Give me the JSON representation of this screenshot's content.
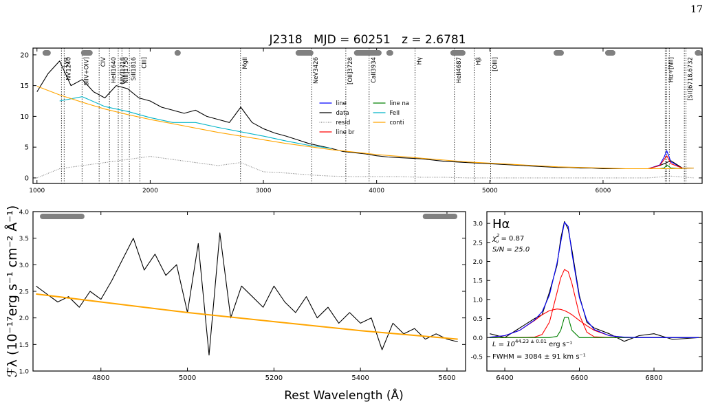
{
  "page_number": "17",
  "ylabel": "ℱλ (10⁻¹⁷erg s⁻¹ cm⁻² Å⁻¹)",
  "xlabel": "Rest Wavelength (Å)",
  "chart_data": [
    {
      "type": "line",
      "title": "J2318   MJD = 60251   z = 2.6781",
      "xlim": [
        965,
        6875
      ],
      "ylim": [
        -0.9,
        21.1
      ],
      "xticks": [
        1000,
        2000,
        3000,
        4000,
        5000,
        6000
      ],
      "yticks": [
        0,
        5,
        10,
        15,
        20
      ],
      "legend": "center",
      "legend_columns": 2,
      "windows": [
        [
          1049,
          1122
        ],
        [
          1389,
          1492
        ],
        [
          2215,
          2270
        ],
        [
          3284,
          3442
        ],
        [
          3800,
          4044
        ],
        [
          4086,
          4147
        ],
        [
          4651,
          4785
        ],
        [
          5563,
          5654
        ],
        [
          6018,
          6109
        ],
        [
          6810,
          6870
        ]
      ],
      "line_marks": {
        "x": [
          1216,
          1240,
          1398,
          1549,
          1640,
          1718,
          1750,
          1816,
          1909,
          2798,
          3426,
          3728,
          3934,
          4340,
          4687,
          4861,
          5007,
          6549,
          6563,
          6585,
          6718,
          6732
        ],
        "labels": [
          "Lyα",
          "NV1240",
          "SiIV+OIV]",
          "CIV",
          "HeII1640",
          "NIV]1718",
          "NIII]1750",
          "SiII1816",
          "CIII]",
          "MgII",
          "NeV3426",
          "[OII]3728",
          "CaII3934",
          "Hγ",
          "HeII4687",
          "Hβ",
          "[OIII]",
          null,
          "Hα+[NII]",
          null,
          null,
          "[SII]6718,6732"
        ]
      },
      "series": [
        {
          "name": "line",
          "color": "#0000ff",
          "x": [
            6400,
            6500,
            6540,
            6563,
            6600,
            6700
          ],
          "values": [
            1.5,
            2.1,
            3.4,
            4.4,
            2.6,
            1.6
          ]
        },
        {
          "name": "data",
          "color": "#000000",
          "x": [
            1000,
            1100,
            1200,
            1300,
            1400,
            1500,
            1600,
            1700,
            1800,
            1900,
            2000,
            2100,
            2200,
            2300,
            2400,
            2500,
            2600,
            2700,
            2800,
            2900,
            3000,
            3100,
            3200,
            3300,
            3400,
            3500,
            3600,
            3700,
            3800,
            3900,
            4000,
            4100,
            4200,
            4300,
            4400,
            4500,
            4600,
            4700,
            4800,
            4900,
            5000,
            5100,
            5200,
            5300,
            5400,
            5500,
            5600,
            5700,
            5800,
            5900,
            6000,
            6100,
            6200,
            6300,
            6400,
            6500,
            6600,
            6700,
            6800
          ],
          "values": [
            14,
            17,
            19,
            15,
            16,
            14,
            13,
            15,
            14.5,
            13,
            12.5,
            11.5,
            11,
            10.5,
            11,
            10,
            9.5,
            9,
            11.5,
            9,
            8,
            7.3,
            6.8,
            6.2,
            5.6,
            5.2,
            4.8,
            4.3,
            4.1,
            3.9,
            3.6,
            3.4,
            3.3,
            3.2,
            3.1,
            2.9,
            2.7,
            2.6,
            2.5,
            2.4,
            2.3,
            2.2,
            2.1,
            2.0,
            1.9,
            1.8,
            1.7,
            1.7,
            1.6,
            1.6,
            1.5,
            1.5,
            1.5,
            1.5,
            1.5,
            2.0,
            2.8,
            1.6,
            1.6
          ]
        },
        {
          "name": "resid",
          "color": "#888888",
          "dash": "dotted",
          "x": [
            1000,
            1200,
            1400,
            1600,
            1800,
            2000,
            2200,
            2400,
            2600,
            2800,
            3000,
            3200,
            3400,
            3600,
            3800,
            4000,
            4200,
            4400,
            4600,
            4800,
            5000,
            5200,
            5400,
            5600,
            5800,
            6000,
            6200,
            6400,
            6600,
            6800
          ],
          "values": [
            0,
            1.5,
            2,
            2.5,
            3,
            3.5,
            3,
            2.5,
            2,
            2.5,
            1,
            0.8,
            0.5,
            0.3,
            0.2,
            0.2,
            0.2,
            0.1,
            0.1,
            0,
            0,
            0,
            0,
            0,
            0,
            0,
            0,
            0,
            0.3,
            0
          ]
        },
        {
          "name": "line br",
          "color": "#ff0000",
          "x": [
            6400,
            6500,
            6540,
            6563,
            6600,
            6700
          ],
          "values": [
            1.5,
            2.0,
            3.0,
            3.6,
            2.3,
            1.6
          ]
        },
        {
          "name": "line na",
          "color": "#008000",
          "x": [
            6400,
            6500,
            6540,
            6563,
            6600,
            6700
          ],
          "values": [
            1.5,
            1.5,
            1.6,
            2.1,
            1.6,
            1.5
          ]
        },
        {
          "name": "FeII",
          "color": "#00b4c8",
          "x": [
            1200,
            1400,
            1600,
            1800,
            2000,
            2200,
            2400,
            2600,
            2800,
            3000,
            3200,
            3400,
            3600
          ],
          "values": [
            12.5,
            13.2,
            11.6,
            10.8,
            9.8,
            9.0,
            9.0,
            8.2,
            7.5,
            6.8,
            6.0,
            5.3,
            4.8
          ]
        },
        {
          "name": "conti",
          "color": "#ffa500",
          "x": [
            1000,
            1200,
            1400,
            1600,
            1800,
            2000,
            2200,
            2400,
            2600,
            2800,
            3000,
            3200,
            3400,
            3600,
            3800,
            4000,
            4200,
            4400,
            4600,
            4800,
            5000,
            5200,
            5400,
            5600,
            5800,
            6000,
            6200,
            6400,
            6600,
            6800
          ],
          "values": [
            14.9,
            13.5,
            12.3,
            11.2,
            10.3,
            9.5,
            8.8,
            8.1,
            7.4,
            6.8,
            6.2,
            5.6,
            5.1,
            4.6,
            4.2,
            3.8,
            3.5,
            3.2,
            2.9,
            2.6,
            2.4,
            2.2,
            2.0,
            1.8,
            1.7,
            1.6,
            1.5,
            1.5,
            1.5,
            1.6
          ]
        }
      ]
    },
    {
      "type": "line",
      "xlim": [
        4643,
        5643
      ],
      "ylim": [
        1,
        4
      ],
      "xticks": [
        4800,
        5000,
        5200,
        5400,
        5600
      ],
      "yticks": [
        {
          "value": 1,
          "label": "1.0"
        },
        1.5,
        {
          "value": 2,
          "label": "2.0"
        },
        2.5,
        {
          "value": 3,
          "label": "3.0"
        },
        3.5,
        {
          "value": 4,
          "label": "4.0"
        }
      ],
      "windows": [
        [
          4659,
          4762
        ],
        [
          5544,
          5624
        ]
      ],
      "series": [
        {
          "color": "#000000",
          "x": [
            4650,
            4675,
            4700,
            4725,
            4750,
            4775,
            4800,
            4825,
            4850,
            4875,
            4900,
            4925,
            4950,
            4975,
            5000,
            5025,
            5050,
            5075,
            5100,
            5125,
            5150,
            5175,
            5200,
            5225,
            5250,
            5275,
            5300,
            5325,
            5350,
            5375,
            5400,
            5425,
            5450,
            5475,
            5500,
            5525,
            5550,
            5575,
            5600,
            5625
          ],
          "values": [
            2.6,
            2.45,
            2.3,
            2.4,
            2.2,
            2.5,
            2.35,
            2.7,
            3.1,
            3.5,
            2.9,
            3.2,
            2.8,
            3.0,
            2.1,
            3.4,
            1.3,
            3.6,
            2.0,
            2.6,
            2.4,
            2.2,
            2.6,
            2.3,
            2.1,
            2.4,
            2.0,
            2.2,
            1.9,
            2.1,
            1.9,
            2.0,
            1.4,
            1.9,
            1.7,
            1.8,
            1.6,
            1.7,
            1.6,
            1.55
          ]
        },
        {
          "color": "#ffa500",
          "width": 2,
          "x": [
            4650,
            4800,
            5000,
            5200,
            5400,
            5625
          ],
          "values": [
            2.45,
            2.3,
            2.1,
            1.93,
            1.76,
            1.6
          ]
        }
      ]
    },
    {
      "type": "line",
      "xlim": [
        6352,
        6929
      ],
      "ylim": [
        -0.88,
        3.31
      ],
      "xticks": [
        6400,
        6600,
        6800
      ],
      "yticks": [
        -0.5,
        {
          "value": 0,
          "label": "0.0"
        },
        0.5,
        {
          "value": 1,
          "label": "1.0"
        },
        1.5,
        {
          "value": 2,
          "label": "2.0"
        },
        2.5,
        {
          "value": 3,
          "label": "3.0"
        }
      ],
      "line_name": "Hα",
      "chi2": {
        "symbol": "χ",
        "sup": "2",
        "sub": "ν",
        "text": " = 0.87"
      },
      "snr": "S/N = 25.0",
      "luminosity": {
        "text": "L = 10",
        "sup": "44.23 ± 0.01",
        "unit": " erg s⁻¹"
      },
      "fwhm": "FWHM = 3084 ± 91 km s⁻¹",
      "series": [
        {
          "color": "#000000",
          "x": [
            6360,
            6400,
            6440,
            6480,
            6500,
            6520,
            6540,
            6550,
            6560,
            6570,
            6580,
            6600,
            6620,
            6640,
            6680,
            6720,
            6760,
            6800,
            6850,
            6920
          ],
          "values": [
            0.1,
            0.0,
            0.25,
            0.5,
            0.6,
            1.2,
            1.9,
            2.6,
            3.05,
            2.85,
            2.3,
            1.1,
            0.4,
            0.25,
            0.1,
            -0.1,
            0.05,
            0.1,
            -0.05,
            0.0
          ]
        },
        {
          "color": "#ff0000",
          "x": [
            6360,
            6400,
            6440,
            6480,
            6500,
            6520,
            6540,
            6550,
            6560,
            6570,
            6580,
            6600,
            6620,
            6640,
            6680,
            6720,
            6760,
            6800,
            6850,
            6920
          ],
          "values": [
            0.008,
            0.05,
            0.19,
            0.45,
            0.6,
            0.71,
            0.75,
            0.74,
            0.71,
            0.66,
            0.6,
            0.45,
            0.31,
            0.19,
            0.05,
            0.008,
            0,
            0,
            0,
            0
          ]
        },
        {
          "color": "#ff0000",
          "x": [
            6360,
            6400,
            6440,
            6480,
            6500,
            6520,
            6540,
            6550,
            6560,
            6570,
            6580,
            6600,
            6620,
            6640,
            6680,
            6720,
            6760,
            6800,
            6850,
            6920
          ],
          "values": [
            0,
            0,
            0,
            0.01,
            0.08,
            0.41,
            1.18,
            1.57,
            1.79,
            1.73,
            1.42,
            0.6,
            0.14,
            0.02,
            0,
            0,
            0,
            0,
            0,
            0
          ]
        },
        {
          "color": "#008000",
          "x": [
            6360,
            6400,
            6440,
            6480,
            6500,
            6520,
            6540,
            6550,
            6560,
            6570,
            6580,
            6600,
            6620,
            6640,
            6680,
            6720,
            6760,
            6800,
            6850,
            6920
          ],
          "values": [
            0,
            0,
            0,
            0,
            0,
            0,
            0.03,
            0.19,
            0.53,
            0.53,
            0.19,
            0,
            0,
            0,
            0,
            0,
            0,
            0,
            0,
            0
          ]
        },
        {
          "color": "#0000ff",
          "x": [
            6360,
            6400,
            6440,
            6480,
            6500,
            6520,
            6540,
            6550,
            6560,
            6570,
            6580,
            6600,
            6620,
            6640,
            6680,
            6720,
            6760,
            6800,
            6850,
            6920
          ],
          "values": [
            0.01,
            0.05,
            0.19,
            0.46,
            0.68,
            1.12,
            1.96,
            2.5,
            3.03,
            2.92,
            2.21,
            1.05,
            0.45,
            0.21,
            0.05,
            0.01,
            0,
            0,
            0,
            0
          ]
        }
      ]
    }
  ]
}
